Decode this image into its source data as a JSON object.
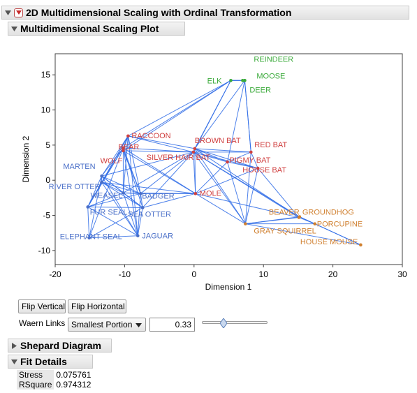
{
  "report": {
    "title": "2D Multidimensional Scaling with Ordinal Transformation"
  },
  "plot_section": {
    "title": "Multidimensional Scaling Plot"
  },
  "chart_data": {
    "type": "scatter",
    "xlabel": "Dimension 1",
    "ylabel": "Dimension 2",
    "xlim": [
      -20,
      30
    ],
    "ylim": [
      -12,
      18
    ],
    "x_ticks": [
      "-20",
      "-10",
      "0",
      "10",
      "20",
      "30"
    ],
    "y_ticks": [
      "15",
      "10",
      "5",
      "0",
      "-5",
      "-10"
    ],
    "x_tick_values": [
      -20,
      -10,
      0,
      10,
      20,
      30
    ],
    "y_tick_values": [
      15,
      10,
      5,
      0,
      -5,
      -10
    ],
    "colors": {
      "cluster_green": "#3aaa3a",
      "cluster_red": "#d04040",
      "cluster_blue": "#4a6fc8",
      "cluster_orange": "#d08030",
      "link": "#2e6be6"
    },
    "points": [
      {
        "label": "REINDEER",
        "x": 7.0,
        "y": 14.2,
        "cluster": "green"
      },
      {
        "label": "MOOSE",
        "x": 7.3,
        "y": 14.2,
        "cluster": "green"
      },
      {
        "label": "ELK",
        "x": 5.3,
        "y": 14.2,
        "cluster": "green"
      },
      {
        "label": "DEER",
        "x": 7.3,
        "y": 14.2,
        "cluster": "green"
      },
      {
        "label": "RACCOON",
        "x": -9.5,
        "y": 6.3,
        "cluster": "red"
      },
      {
        "label": "BEAR",
        "x": -10.2,
        "y": 4.6,
        "cluster": "red"
      },
      {
        "label": "WOLF",
        "x": -10.2,
        "y": 4.2,
        "cluster": "red"
      },
      {
        "label": "BROWN BAT",
        "x": 0.1,
        "y": 4.5,
        "cluster": "red"
      },
      {
        "label": "RED BAT",
        "x": 8.2,
        "y": 4.0,
        "cluster": "red"
      },
      {
        "label": "SILVER HAIR BAT",
        "x": -0.1,
        "y": 4.0,
        "cluster": "red"
      },
      {
        "label": "PIGMY BAT",
        "x": 4.8,
        "y": 2.6,
        "cluster": "red"
      },
      {
        "label": "HOUSE BAT",
        "x": 9.2,
        "y": 1.7,
        "cluster": "red"
      },
      {
        "label": "MOLE",
        "x": 0.2,
        "y": -1.9,
        "cluster": "red"
      },
      {
        "label": "MARTEN",
        "x": -13.3,
        "y": 0.6,
        "cluster": "blue"
      },
      {
        "label": "RIVER OTTER",
        "x": -13.3,
        "y": -0.3,
        "cluster": "blue"
      },
      {
        "label": "WEASEL",
        "x": -10.2,
        "y": -1.8,
        "cluster": "blue"
      },
      {
        "label": "BADGER",
        "x": -7.7,
        "y": -1.9,
        "cluster": "blue"
      },
      {
        "label": "SEA OTTER",
        "x": -7.4,
        "y": -3.9,
        "cluster": "blue"
      },
      {
        "label": "FUR SEAL",
        "x": -15.3,
        "y": -3.8,
        "cluster": "blue"
      },
      {
        "label": "ELEPHANT SEAL",
        "x": -15.1,
        "y": -8.2,
        "cluster": "blue"
      },
      {
        "label": "JAGUAR",
        "x": -8.1,
        "y": -7.9,
        "cluster": "blue"
      },
      {
        "label": "BEAVER",
        "x": 15.1,
        "y": -5.3,
        "cluster": "orange"
      },
      {
        "label": "GROUNDHOG",
        "x": 15.2,
        "y": -5.2,
        "cluster": "orange"
      },
      {
        "label": "GRAY SQUIRREL",
        "x": 7.4,
        "y": -6.2,
        "cluster": "orange"
      },
      {
        "label": "PORCUPINE",
        "x": 17.4,
        "y": -6.2,
        "cluster": "orange"
      },
      {
        "label": "HOUSE MOUSE",
        "x": 24.0,
        "y": -9.2,
        "cluster": "orange"
      }
    ]
  },
  "controls": {
    "flip_vertical": "Flip Vertical",
    "flip_horizontal": "Flip Horizontal",
    "waern_label": "Waern Links",
    "waern_select": "Smallest Portion",
    "waern_value": "0.33",
    "slider_fraction": 0.33
  },
  "shepard": {
    "title": "Shepard Diagram"
  },
  "fit": {
    "title": "Fit Details",
    "rows": [
      {
        "key": "Stress",
        "value": "0.075761"
      },
      {
        "key": "RSquare",
        "value": "0.974312"
      }
    ]
  }
}
